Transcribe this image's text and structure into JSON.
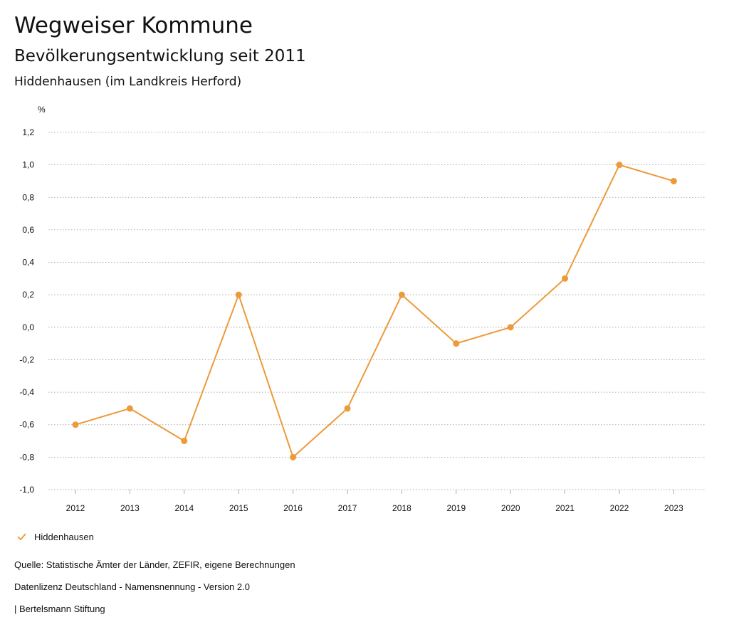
{
  "header": {
    "title": "Wegweiser Kommune",
    "subtitle": "Bevölkerungsentwicklung seit 2011",
    "region": "Hiddenhausen (im Landkreis Herford)"
  },
  "chart_data": {
    "type": "line",
    "ylabel": "%",
    "ylim": [
      -1.0,
      1.2
    ],
    "yticks": [
      "-1,0",
      "-0,8",
      "-0,6",
      "-0,4",
      "-0,2",
      "0,0",
      "0,2",
      "0,4",
      "0,6",
      "0,8",
      "1,0",
      "1,2"
    ],
    "categories": [
      "2012",
      "2013",
      "2014",
      "2015",
      "2016",
      "2017",
      "2018",
      "2019",
      "2020",
      "2021",
      "2022",
      "2023"
    ],
    "series": [
      {
        "name": "Hiddenhausen",
        "color": "#ec9a3a",
        "values": [
          -0.6,
          -0.5,
          -0.7,
          0.2,
          -0.8,
          -0.5,
          0.2,
          -0.1,
          0.0,
          0.3,
          1.0,
          0.9
        ]
      }
    ],
    "grid": true,
    "legend_position": "bottom-left"
  },
  "footer": {
    "source": "Quelle: Statistische Ämter der Länder, ZEFIR, eigene Berechnungen",
    "license": "Datenlizenz Deutschland - Namensnennung - Version 2.0",
    "publisher": "| Bertelsmann Stiftung"
  }
}
